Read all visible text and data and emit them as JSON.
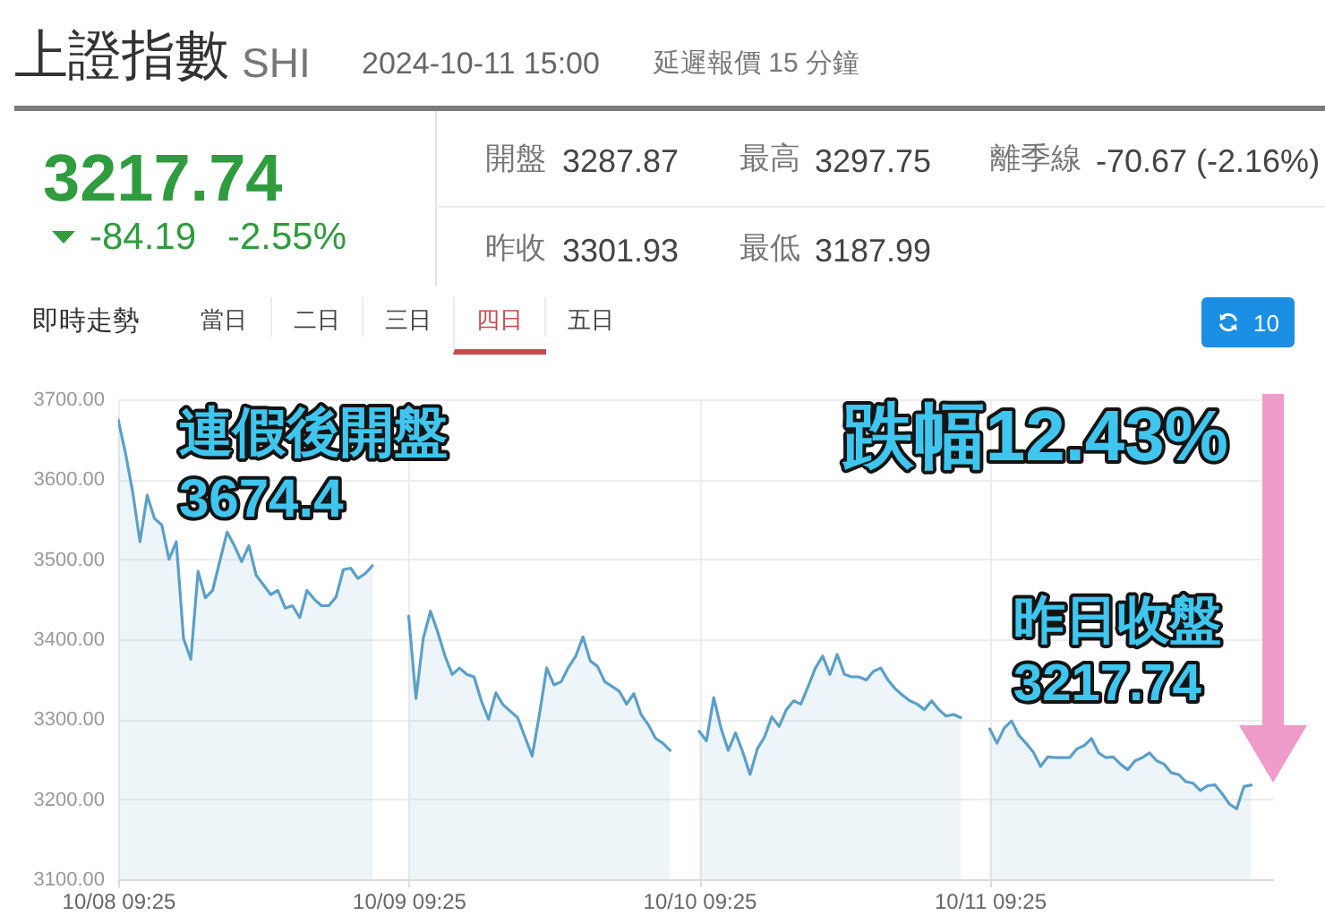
{
  "chart_data": [
    {
      "type": "other",
      "title": "上證指數",
      "subtitle": "SHI",
      "annotations": [
        "2024-10-11 15:00",
        "延遲報價 15 分鐘",
        "3217.74",
        "-84.19",
        "-2.55%",
        "開盤",
        "3287.87",
        "最高",
        "3297.75",
        "離季線",
        "-70.67 (-2.16%)",
        "昨收",
        "3301.93",
        "最低",
        "3187.99",
        "即時走勢",
        "當日",
        "二日",
        "三日",
        "四日",
        "五日",
        "10"
      ]
    },
    {
      "type": "area",
      "color": "#5aa0c8",
      "categories": [
        "10/08 09:25",
        null,
        null,
        null,
        null,
        null,
        null,
        null,
        null,
        null,
        null,
        null,
        null,
        null,
        null,
        null,
        null,
        null,
        null,
        null,
        null,
        null,
        null,
        null,
        null,
        null,
        null,
        null,
        null,
        null,
        null,
        null,
        null,
        null,
        null,
        null,
        null,
        null,
        null,
        null,
        "10/09 09:25",
        null,
        null,
        null,
        null,
        null,
        null,
        null,
        null,
        null,
        null,
        null,
        null,
        null,
        null,
        null,
        null,
        null,
        null,
        null,
        null,
        null,
        null,
        null,
        null,
        null,
        null,
        null,
        null,
        null,
        null,
        null,
        null,
        null,
        null,
        null,
        null,
        null,
        null,
        null,
        "10/10 09:25",
        null,
        null,
        null,
        null,
        null,
        null,
        null,
        null,
        null,
        null,
        null,
        null,
        null,
        null,
        null,
        null,
        null,
        null,
        null,
        null,
        null,
        null,
        null,
        null,
        null,
        null,
        null,
        null,
        null,
        null,
        null,
        null,
        null,
        null,
        null,
        null,
        null,
        null,
        null,
        "10/11 09:25",
        null,
        null,
        null,
        null,
        null,
        null,
        null,
        null,
        null,
        null,
        null,
        null,
        null,
        null,
        null,
        null,
        null,
        null,
        null,
        null,
        null,
        null,
        null,
        null,
        null,
        null,
        null,
        null,
        null,
        null,
        null,
        null,
        null,
        null,
        null,
        null,
        null,
        null,
        null
      ],
      "values": [
        3674.4,
        3633,
        3584,
        3522,
        3580,
        3551,
        3543,
        3500,
        3522,
        3401,
        3375,
        3485,
        3452,
        3461,
        3498,
        3534,
        3517,
        3497,
        3517,
        3480,
        3468,
        3456,
        3461,
        3439,
        3442,
        3427,
        3461,
        3450,
        3442,
        3442,
        3453,
        3487,
        3489,
        3476,
        3482,
        3492,
        null,
        null,
        null,
        null,
        3429,
        3326,
        3401,
        3435,
        3409,
        3379,
        3356,
        3364,
        3356,
        3353,
        3323,
        3300,
        3333,
        3318,
        3310,
        3302,
        3278,
        3254,
        3306,
        3364,
        3343,
        3347,
        3365,
        3379,
        3403,
        3373,
        3366,
        3347,
        3341,
        3335,
        3319,
        3332,
        3306,
        3293,
        3276,
        3270,
        3261,
        null,
        null,
        null,
        3285,
        3273,
        3327,
        3289,
        3261,
        3283,
        3259,
        3231,
        3263,
        3278,
        3303,
        3291,
        3312,
        3323,
        3319,
        3341,
        3364,
        3379,
        3356,
        3381,
        3356,
        3353,
        3353,
        3349,
        3360,
        3364,
        3349,
        3338,
        3330,
        3323,
        3319,
        3312,
        3323,
        3312,
        3304,
        3306,
        3302,
        null,
        null,
        null,
        3288,
        3270,
        3289,
        3298,
        3280,
        3270,
        3259,
        3241,
        3253,
        3252,
        3252,
        3252,
        3263,
        3267,
        3276,
        3258,
        3252,
        3253,
        3244,
        3237,
        3248,
        3252,
        3258,
        3248,
        3244,
        3233,
        3231,
        3222,
        3220,
        3211,
        3217,
        3218,
        3207,
        3194,
        3188,
        3216,
        3217.74,
        null,
        null,
        null
      ],
      "ylim": [
        3100,
        3700
      ],
      "yticks": [
        {
          "value": 3100,
          "label": "3100.00"
        },
        {
          "value": 3200,
          "label": "3200.00"
        },
        {
          "value": 3300,
          "label": "3300.00"
        },
        {
          "value": 3400,
          "label": "3400.00"
        },
        {
          "value": 3500,
          "label": "3500.00"
        },
        {
          "value": 3600,
          "label": "3600.00"
        },
        {
          "value": 3700,
          "label": "3700.00"
        }
      ],
      "grid": true,
      "annotations": [
        {
          "text": "連假後開盤 3674.4",
          "x": "10/08 09:25",
          "y": 3674.4
        },
        "跌幅12.43%",
        "昨日收盤 3217.74"
      ]
    }
  ]
}
